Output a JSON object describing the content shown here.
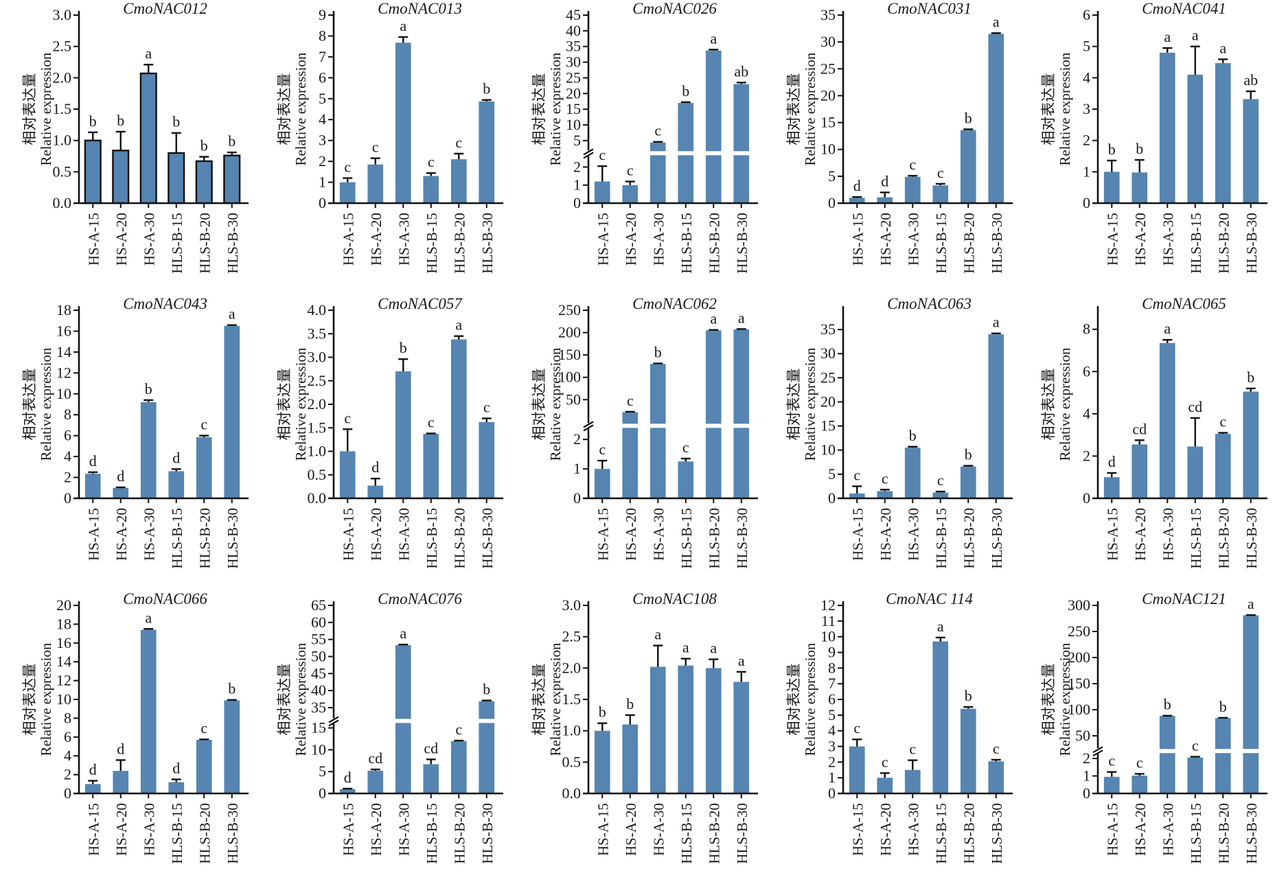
{
  "figure": {
    "bar_color": "#5585b0",
    "axis_color": "#111111",
    "ylabel_cn": "相对表达量",
    "ylabel_en": "Relative expression"
  },
  "chart_data": [
    {
      "type": "bar",
      "title": "CmoNAC012",
      "outlined": true,
      "categories": [
        "HS-A-15",
        "HS-A-20",
        "HS-A-30",
        "HLS-B-15",
        "HLS-B-20",
        "HLS-B-30"
      ],
      "values": [
        1.0,
        0.84,
        2.07,
        0.8,
        0.67,
        0.76
      ],
      "errors": [
        0.13,
        0.3,
        0.14,
        0.32,
        0.07,
        0.05
      ],
      "sig": [
        "b",
        "b",
        "a",
        "b",
        "b",
        "b"
      ],
      "ylim": [
        0,
        3.0
      ],
      "ticks": [
        "0.0",
        "0.5",
        "1.0",
        "1.5",
        "2.0",
        "2.5",
        "3.0"
      ],
      "break": null,
      "xlabel": "",
      "ylabel": "相对表达量 Relative expression"
    },
    {
      "type": "bar",
      "title": "CmoNAC013",
      "categories": [
        "HS-A-15",
        "HS-A-20",
        "HS-A-30",
        "HLS-B-15",
        "HLS-B-20",
        "HLS-B-30"
      ],
      "values": [
        1.0,
        1.85,
        7.68,
        1.3,
        2.1,
        4.87
      ],
      "errors": [
        0.2,
        0.3,
        0.27,
        0.14,
        0.27,
        0.07
      ],
      "sig": [
        "c",
        "c",
        "a",
        "c",
        "c",
        "b"
      ],
      "ylim": [
        0,
        9
      ],
      "ticks": [
        "0",
        "1",
        "2",
        "3",
        "4",
        "5",
        "6",
        "7",
        "8",
        "9"
      ],
      "break": null,
      "xlabel": "",
      "ylabel": "相对表达量 Relative expression"
    },
    {
      "type": "bar",
      "title": "CmoNAC026",
      "categories": [
        "HS-A-15",
        "HS-A-20",
        "HS-A-30",
        "HLS-B-15",
        "HLS-B-20",
        "HLS-B-30"
      ],
      "values": [
        1.2,
        1.0,
        4.4,
        17.0,
        33.7,
        23.0
      ],
      "errors": [
        0.85,
        0.2,
        0.2,
        0.25,
        0.3,
        0.5
      ],
      "sig": [
        "c",
        "c",
        "c",
        "b",
        "a",
        "ab"
      ],
      "ylim": [
        0,
        45
      ],
      "ticks_low": [
        "0",
        "1",
        "2"
      ],
      "ticks_high": [
        "5",
        "10",
        "15",
        "20",
        "25",
        "30",
        "35",
        "40",
        "45"
      ],
      "break": {
        "low_max": 2.5,
        "high_min": 2.5,
        "high_max": 45,
        "high_start_tick": 5,
        "low_frac": 0.24
      },
      "xlabel": "",
      "ylabel": "相对表达量 Relative expression"
    },
    {
      "type": "bar",
      "title": "CmoNAC031",
      "categories": [
        "HS-A-15",
        "HS-A-20",
        "HS-A-30",
        "HLS-B-15",
        "HLS-B-20",
        "HLS-B-30"
      ],
      "values": [
        1.0,
        1.1,
        4.9,
        3.3,
        13.6,
        31.5
      ],
      "errors": [
        0.15,
        0.9,
        0.2,
        0.3,
        0.15,
        0.15
      ],
      "sig": [
        "d",
        "d",
        "c",
        "c",
        "b",
        "a"
      ],
      "ylim": [
        0,
        35
      ],
      "ticks": [
        "0",
        "5",
        "10",
        "15",
        "20",
        "25",
        "30",
        "35"
      ],
      "break": null,
      "xlabel": "",
      "ylabel": "相对表达量 Relative expression"
    },
    {
      "type": "bar",
      "title": "CmoNAC041",
      "categories": [
        "HS-A-15",
        "HS-A-20",
        "HS-A-30",
        "HLS-B-15",
        "HLS-B-20",
        "HLS-B-30"
      ],
      "values": [
        1.0,
        0.98,
        4.8,
        4.1,
        4.47,
        3.32
      ],
      "errors": [
        0.36,
        0.4,
        0.15,
        0.9,
        0.12,
        0.25
      ],
      "sig": [
        "b",
        "b",
        "a",
        "a",
        "a",
        "ab"
      ],
      "ylim": [
        0,
        6
      ],
      "ticks": [
        "0",
        "1",
        "2",
        "3",
        "4",
        "5",
        "6"
      ],
      "break": null,
      "xlabel": "",
      "ylabel": "相对表达量 Relative expression"
    },
    {
      "type": "bar",
      "title": "CmoNAC043",
      "categories": [
        "HS-A-15",
        "HS-A-20",
        "HS-A-30",
        "HLS-B-15",
        "HLS-B-20",
        "HLS-B-30"
      ],
      "values": [
        2.35,
        1.0,
        9.2,
        2.6,
        5.85,
        16.5
      ],
      "errors": [
        0.15,
        0.05,
        0.2,
        0.2,
        0.15,
        0.08
      ],
      "sig": [
        "d",
        "d",
        "b",
        "d",
        "c",
        "a"
      ],
      "ylim": [
        0,
        18
      ],
      "ticks": [
        "0",
        "2",
        "4",
        "6",
        "8",
        "10",
        "12",
        "14",
        "16",
        "18"
      ],
      "break": null,
      "xlabel": "",
      "ylabel": "相对表达量 Relative expression"
    },
    {
      "type": "bar",
      "title": "CmoNAC057",
      "categories": [
        "HS-A-15",
        "HS-A-20",
        "HS-A-30",
        "HLS-B-15",
        "HLS-B-20",
        "HLS-B-30"
      ],
      "values": [
        1.0,
        0.27,
        2.7,
        1.37,
        3.38,
        1.62
      ],
      "errors": [
        0.47,
        0.15,
        0.26,
        0.01,
        0.07,
        0.08
      ],
      "sig": [
        "c",
        "d",
        "b",
        "c",
        "a",
        "c"
      ],
      "ylim": [
        0,
        4.0
      ],
      "ticks": [
        "0.0",
        "0.5",
        "1.0",
        "1.5",
        "2.0",
        "2.5",
        "3.0",
        "3.5",
        "4.0"
      ],
      "break": null,
      "xlabel": "",
      "ylabel": "相对表达量 Relative expression"
    },
    {
      "type": "bar",
      "title": "CmoNAC062",
      "categories": [
        "HS-A-15",
        "HS-A-20",
        "HS-A-30",
        "HLS-B-15",
        "HLS-B-20",
        "HLS-B-30"
      ],
      "values": [
        1.0,
        22.0,
        130.0,
        1.25,
        205.0,
        207.0
      ],
      "errors": [
        0.28,
        1.0,
        1.0,
        0.1,
        1.0,
        1.0
      ],
      "sig": [
        "c",
        "c",
        "b",
        "c",
        "a",
        "a"
      ],
      "ylim": [
        0,
        250
      ],
      "ticks_low": [
        "0",
        "1",
        "2"
      ],
      "ticks_high": [
        "50",
        "100",
        "150",
        "200",
        "250"
      ],
      "break": {
        "low_max": 2.3,
        "high_min": 2.3,
        "high_max": 250,
        "high_start_tick": 50,
        "low_frac": 0.36
      },
      "xlabel": "",
      "ylabel": "相对表达量 Relative expression"
    },
    {
      "type": "bar",
      "title": "CmoNAC063",
      "categories": [
        "HS-A-15",
        "HS-A-20",
        "HS-A-30",
        "HLS-B-15",
        "HLS-B-20",
        "HLS-B-30"
      ],
      "values": [
        1.0,
        1.5,
        10.5,
        1.2,
        6.6,
        34.0
      ],
      "errors": [
        1.5,
        0.3,
        0.2,
        0.2,
        0.15,
        0.2
      ],
      "sig": [
        "c",
        "c",
        "b",
        "c",
        "b",
        "a"
      ],
      "ylim": [
        0,
        39
      ],
      "ticks": [
        "0",
        "5",
        "10",
        "15",
        "20",
        "25",
        "30",
        "35"
      ],
      "break": null,
      "xlabel": "",
      "ylabel": "相对表达量 Relative expression"
    },
    {
      "type": "bar",
      "title": "CmoNAC065",
      "categories": [
        "HS-A-15",
        "HS-A-20",
        "HS-A-30",
        "HLS-B-15",
        "HLS-B-20",
        "HLS-B-30"
      ],
      "values": [
        1.0,
        2.55,
        7.35,
        2.45,
        3.05,
        5.05
      ],
      "errors": [
        0.2,
        0.2,
        0.15,
        1.35,
        0.05,
        0.15
      ],
      "sig": [
        "d",
        "cd",
        "a",
        "cd",
        "c",
        "b"
      ],
      "ylim": [
        0,
        8.9
      ],
      "ticks": [
        "0",
        "2",
        "4",
        "6",
        "8"
      ],
      "break": null,
      "xlabel": "",
      "ylabel": "相对表达量 Relative expression"
    },
    {
      "type": "bar",
      "title": "CmoNAC066",
      "categories": [
        "HS-A-15",
        "HS-A-20",
        "HS-A-30",
        "HLS-B-15",
        "HLS-B-20",
        "HLS-B-30"
      ],
      "values": [
        1.0,
        2.4,
        17.4,
        1.2,
        5.7,
        9.9
      ],
      "errors": [
        0.35,
        1.15,
        0.1,
        0.3,
        0.05,
        0.05
      ],
      "sig": [
        "d",
        "d",
        "a",
        "d",
        "c",
        "b"
      ],
      "ylim": [
        0,
        20
      ],
      "ticks": [
        "0",
        "2",
        "4",
        "6",
        "8",
        "10",
        "12",
        "14",
        "16",
        "18",
        "20"
      ],
      "break": null,
      "xlabel": "",
      "ylabel": "相对表达量 Relative expression"
    },
    {
      "type": "bar",
      "title": "CmoNAC076",
      "categories": [
        "HS-A-15",
        "HS-A-20",
        "HS-A-30",
        "HLS-B-15",
        "HLS-B-20",
        "HLS-B-30"
      ],
      "values": [
        1.0,
        5.2,
        53.3,
        6.7,
        12.0,
        36.9
      ],
      "errors": [
        0.1,
        0.3,
        0.2,
        1.1,
        0.1,
        0.2
      ],
      "sig": [
        "d",
        "cd",
        "a",
        "cd",
        "c",
        "b"
      ],
      "ylim": [
        0,
        65
      ],
      "ticks_low": [
        "0",
        "5",
        "10",
        "15"
      ],
      "ticks_high": [
        "35",
        "40",
        "45",
        "50",
        "55",
        "60",
        "65"
      ],
      "break": {
        "low_max": 15.5,
        "high_min": 32.5,
        "high_max": 65,
        "high_start_tick": 35,
        "low_frac": 0.36
      },
      "xlabel": "",
      "ylabel": "相对表达量 Relative expression"
    },
    {
      "type": "bar",
      "title": "CmoNAC108",
      "categories": [
        "HS-A-15",
        "HS-A-20",
        "HS-A-30",
        "HLS-B-15",
        "HLS-B-20",
        "HLS-B-30"
      ],
      "values": [
        1.0,
        1.1,
        2.02,
        2.04,
        2.0,
        1.78
      ],
      "errors": [
        0.12,
        0.15,
        0.34,
        0.11,
        0.14,
        0.16
      ],
      "sig": [
        "b",
        "b",
        "a",
        "a",
        "a",
        "a"
      ],
      "ylim": [
        0,
        3.0
      ],
      "ticks": [
        "0.0",
        "0.5",
        "1.0",
        "1.5",
        "2.0",
        "2.5",
        "3.0"
      ],
      "break": null,
      "xlabel": "",
      "ylabel": "相对表达量 Relative expression"
    },
    {
      "type": "bar",
      "title": "CmoNAC 114",
      "categories": [
        "HS-A-15",
        "HS-A-20",
        "HS-A-30",
        "HLS-B-15",
        "HLS-B-20",
        "HLS-B-30"
      ],
      "values": [
        3.0,
        1.0,
        1.5,
        9.7,
        5.4,
        2.05
      ],
      "errors": [
        0.45,
        0.3,
        0.62,
        0.25,
        0.12,
        0.1
      ],
      "sig": [
        "c",
        "c",
        "c",
        "a",
        "b",
        "c"
      ],
      "ylim": [
        0,
        12
      ],
      "ticks": [
        "0",
        "1",
        "2",
        "3",
        "4",
        "5",
        "6",
        "7",
        "8",
        "9",
        "10",
        "11",
        "12"
      ],
      "break": null,
      "xlabel": "",
      "ylabel": "相对表达量 Relative expression"
    },
    {
      "type": "bar",
      "title": "CmoNAC121",
      "categories": [
        "HS-A-15",
        "HS-A-20",
        "HS-A-30",
        "HLS-B-15",
        "HLS-B-20",
        "HLS-B-30"
      ],
      "values": [
        0.95,
        1.02,
        88.0,
        2.05,
        84.0,
        281.0
      ],
      "errors": [
        0.28,
        0.1,
        0.5,
        0.05,
        0.5,
        0.5
      ],
      "sig": [
        "c",
        "c",
        "b",
        "c",
        "b",
        "a"
      ],
      "ylim": [
        0,
        300
      ],
      "ticks_low": [
        "0",
        "1",
        "2"
      ],
      "ticks_high": [
        "50",
        "100",
        "150",
        "200",
        "250",
        "300"
      ],
      "break": {
        "low_max": 2.15,
        "high_min": 30,
        "high_max": 300,
        "high_start_tick": 50,
        "low_frac": 0.2
      },
      "xlabel": "",
      "ylabel": "相对表达量 Relative expression"
    }
  ]
}
